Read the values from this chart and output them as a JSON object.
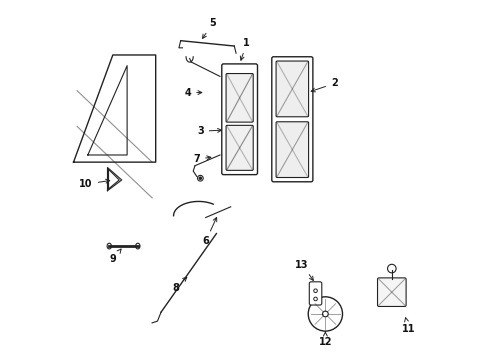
{
  "bg_color": "#ffffff",
  "line_color": "#222222",
  "label_color": "#111111"
}
